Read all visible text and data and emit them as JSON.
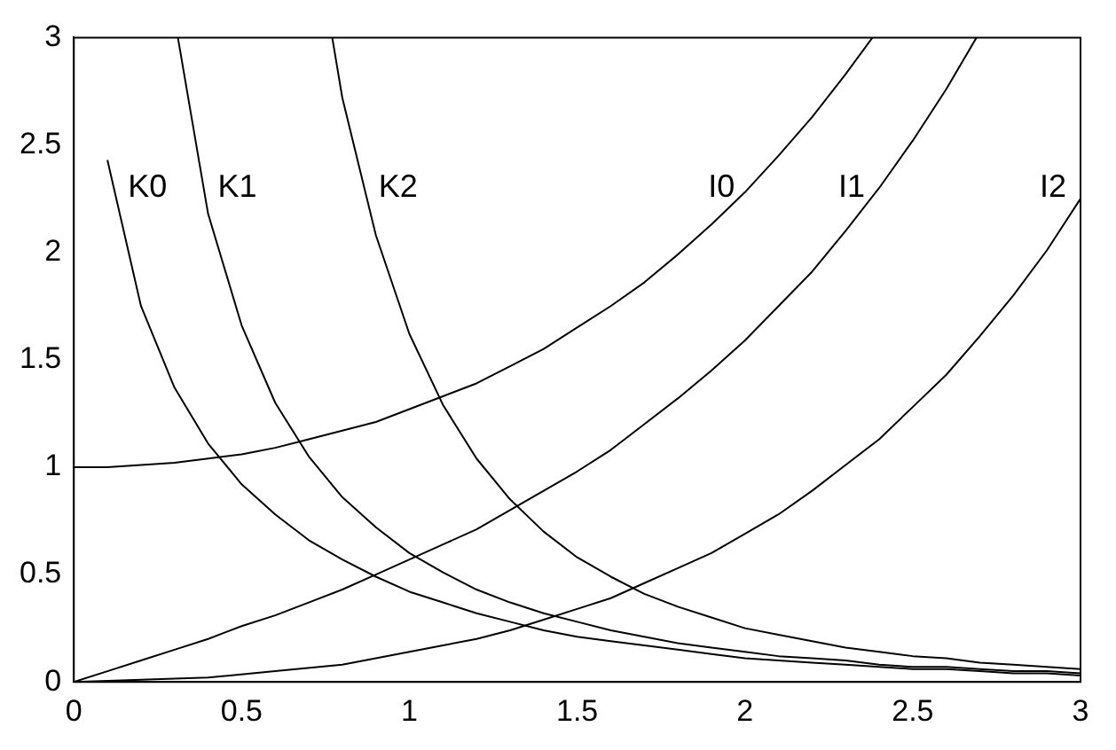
{
  "chart_data": {
    "type": "line",
    "xlim": [
      0,
      3
    ],
    "ylim": [
      0,
      3
    ],
    "xticks": [
      0,
      0.5,
      1,
      1.5,
      2,
      2.5,
      3
    ],
    "yticks": [
      0,
      0.5,
      1,
      1.5,
      2,
      2.5,
      3
    ],
    "grid": false,
    "legend": false,
    "marker": "none",
    "line_style": "solid",
    "series": [
      {
        "name": "K0",
        "color": "#000000",
        "x": [
          0.1,
          0.2,
          0.3,
          0.4,
          0.5,
          0.6,
          0.7,
          0.8,
          0.9,
          1.0,
          1.1,
          1.2,
          1.3,
          1.4,
          1.5,
          1.6,
          1.7,
          1.8,
          1.9,
          2.0,
          2.1,
          2.2,
          2.3,
          2.4,
          2.5,
          2.6,
          2.7,
          2.8,
          2.9,
          3.0
        ],
        "values": [
          2.43,
          1.75,
          1.37,
          1.11,
          0.92,
          0.78,
          0.66,
          0.57,
          0.49,
          0.42,
          0.37,
          0.32,
          0.28,
          0.24,
          0.21,
          0.19,
          0.17,
          0.15,
          0.13,
          0.11,
          0.1,
          0.09,
          0.08,
          0.07,
          0.06,
          0.06,
          0.05,
          0.04,
          0.04,
          0.03
        ]
      },
      {
        "name": "K1",
        "color": "#000000",
        "x": [
          0.31,
          0.4,
          0.5,
          0.6,
          0.7,
          0.8,
          0.9,
          1.0,
          1.1,
          1.2,
          1.3,
          1.4,
          1.5,
          1.6,
          1.7,
          1.8,
          1.9,
          2.0,
          2.1,
          2.2,
          2.3,
          2.4,
          2.5,
          2.6,
          2.7,
          2.8,
          2.9,
          3.0
        ],
        "values": [
          3,
          2.18,
          1.66,
          1.3,
          1.05,
          0.86,
          0.72,
          0.6,
          0.51,
          0.43,
          0.37,
          0.32,
          0.28,
          0.24,
          0.21,
          0.18,
          0.16,
          0.14,
          0.12,
          0.11,
          0.1,
          0.08,
          0.07,
          0.07,
          0.06,
          0.05,
          0.05,
          0.04
        ]
      },
      {
        "name": "K2",
        "color": "#000000",
        "x": [
          0.77,
          0.8,
          0.9,
          1.0,
          1.1,
          1.2,
          1.3,
          1.4,
          1.5,
          1.6,
          1.7,
          1.8,
          1.9,
          2.0,
          2.1,
          2.2,
          2.3,
          2.4,
          2.5,
          2.6,
          2.7,
          2.8,
          2.9,
          3.0
        ],
        "values": [
          3,
          2.72,
          2.08,
          1.62,
          1.29,
          1.04,
          0.85,
          0.7,
          0.58,
          0.49,
          0.41,
          0.35,
          0.3,
          0.25,
          0.22,
          0.19,
          0.16,
          0.14,
          0.12,
          0.11,
          0.09,
          0.08,
          0.07,
          0.06
        ]
      },
      {
        "name": "I0",
        "color": "#000000",
        "x": [
          0,
          0.1,
          0.2,
          0.3,
          0.4,
          0.5,
          0.6,
          0.7,
          0.8,
          0.9,
          1.0,
          1.1,
          1.2,
          1.3,
          1.4,
          1.5,
          1.6,
          1.7,
          1.8,
          1.9,
          2.0,
          2.1,
          2.2,
          2.3,
          2.38
        ],
        "values": [
          1,
          1,
          1.01,
          1.02,
          1.04,
          1.06,
          1.09,
          1.13,
          1.17,
          1.21,
          1.27,
          1.33,
          1.39,
          1.47,
          1.55,
          1.65,
          1.75,
          1.86,
          1.99,
          2.13,
          2.28,
          2.45,
          2.63,
          2.83,
          3
        ]
      },
      {
        "name": "I1",
        "color": "#000000",
        "x": [
          0,
          0.1,
          0.2,
          0.3,
          0.4,
          0.5,
          0.6,
          0.7,
          0.8,
          0.9,
          1.0,
          1.1,
          1.2,
          1.3,
          1.4,
          1.5,
          1.6,
          1.7,
          1.8,
          1.9,
          2.0,
          2.1,
          2.2,
          2.3,
          2.4,
          2.5,
          2.6,
          2.69
        ],
        "values": [
          0,
          0.05,
          0.1,
          0.15,
          0.2,
          0.26,
          0.31,
          0.37,
          0.43,
          0.5,
          0.57,
          0.64,
          0.71,
          0.8,
          0.89,
          0.98,
          1.08,
          1.2,
          1.32,
          1.45,
          1.59,
          1.75,
          1.91,
          2.1,
          2.3,
          2.52,
          2.76,
          3
        ]
      },
      {
        "name": "I2",
        "color": "#000000",
        "x": [
          0,
          0.2,
          0.4,
          0.6,
          0.8,
          1.0,
          1.1,
          1.2,
          1.3,
          1.4,
          1.5,
          1.6,
          1.7,
          1.8,
          1.9,
          2.0,
          2.1,
          2.2,
          2.3,
          2.4,
          2.5,
          2.6,
          2.7,
          2.8,
          2.9,
          3.0
        ],
        "values": [
          0,
          0.01,
          0.02,
          0.05,
          0.08,
          0.14,
          0.17,
          0.2,
          0.24,
          0.29,
          0.34,
          0.39,
          0.46,
          0.53,
          0.6,
          0.69,
          0.78,
          0.89,
          1.01,
          1.13,
          1.28,
          1.43,
          1.61,
          1.8,
          2.01,
          2.25
        ]
      }
    ]
  }
}
